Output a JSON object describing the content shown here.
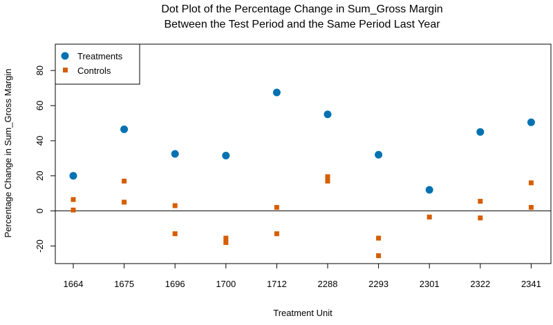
{
  "chart_data": {
    "type": "scatter",
    "title": "Dot Plot of the Percentage Change in Sum_Gross Margin",
    "subtitle": "Between the Test Period and the Same Period Last Year",
    "xlabel": "Treatment Unit",
    "ylabel": "Percentage Change in Sum_Gross Margin",
    "categories": [
      "1664",
      "1675",
      "1696",
      "1700",
      "1712",
      "2288",
      "2293",
      "2301",
      "2322",
      "2341"
    ],
    "ylim": [
      -30,
      95
    ],
    "yticks": [
      -20,
      0,
      20,
      40,
      60,
      80
    ],
    "reference_line_y": 0,
    "legend_position": "top-left",
    "colors": {
      "treatments": "#0072B2",
      "controls": "#D55E00"
    },
    "series": [
      {
        "name": "Treatments",
        "marker": "circle",
        "color": "#0072B2",
        "points": [
          {
            "category": "1664",
            "value": 20
          },
          {
            "category": "1675",
            "value": 46.5
          },
          {
            "category": "1696",
            "value": 32.5
          },
          {
            "category": "1700",
            "value": 31.5
          },
          {
            "category": "1712",
            "value": 67.5
          },
          {
            "category": "2288",
            "value": 55
          },
          {
            "category": "2293",
            "value": 32
          },
          {
            "category": "2301",
            "value": 12
          },
          {
            "category": "2322",
            "value": 45
          },
          {
            "category": "2341",
            "value": 50.5
          }
        ]
      },
      {
        "name": "Controls",
        "marker": "square",
        "color": "#D55E00",
        "points": [
          {
            "category": "1664",
            "value": 6.5
          },
          {
            "category": "1664",
            "value": 0.5
          },
          {
            "category": "1675",
            "value": 17
          },
          {
            "category": "1675",
            "value": 5
          },
          {
            "category": "1696",
            "value": 3
          },
          {
            "category": "1696",
            "value": -13
          },
          {
            "category": "1700",
            "value": -15.5
          },
          {
            "category": "1700",
            "value": -18
          },
          {
            "category": "1712",
            "value": 2
          },
          {
            "category": "1712",
            "value": -13
          },
          {
            "category": "2288",
            "value": 19.5
          },
          {
            "category": "2288",
            "value": 17
          },
          {
            "category": "2293",
            "value": -15.5
          },
          {
            "category": "2293",
            "value": -25.5
          },
          {
            "category": "2301",
            "value": -3.5
          },
          {
            "category": "2322",
            "value": 5.5
          },
          {
            "category": "2322",
            "value": -4
          },
          {
            "category": "2341",
            "value": 16
          },
          {
            "category": "2341",
            "value": 2
          }
        ]
      }
    ]
  }
}
